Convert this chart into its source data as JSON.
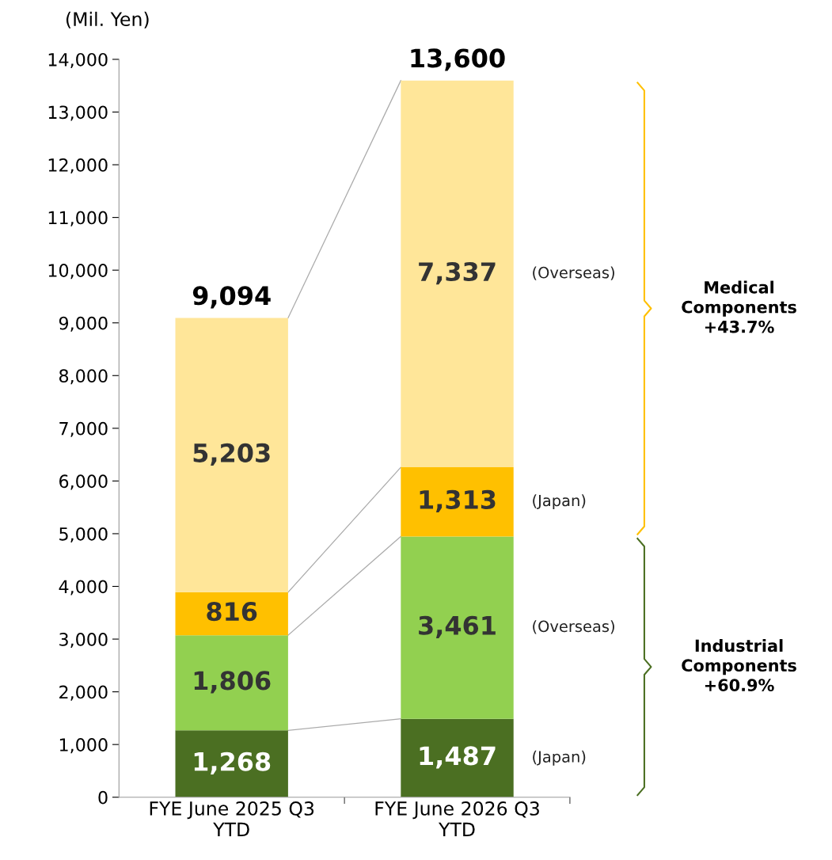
{
  "chart_data": {
    "type": "bar",
    "stacked": true,
    "ylabel": "(Mil. Yen)",
    "categories": [
      "FYE June 2025 Q3\nYTD",
      "FYE June 2026 Q3\nYTD"
    ],
    "series": [
      {
        "name": "(Japan)",
        "color": "#4b6f22",
        "values": [
          1268,
          1487
        ],
        "value_labels": [
          "1,268",
          "1,487"
        ]
      },
      {
        "name": "(Overseas)",
        "color": "#92d050",
        "values": [
          1806,
          3461
        ],
        "value_labels": [
          "1,806",
          "3,461"
        ]
      },
      {
        "name": "(Japan)",
        "color": "#ffc000",
        "values": [
          816,
          1313
        ],
        "value_labels": [
          "816",
          "1,313"
        ]
      },
      {
        "name": "(Overseas)",
        "color": "#ffe699",
        "values": [
          5203,
          7337
        ],
        "value_labels": [
          "5,203",
          "7,337"
        ]
      }
    ],
    "totals": [
      "9,094",
      "13,600"
    ],
    "ylim": [
      0,
      14000
    ],
    "yticks": [
      {
        "value": 0,
        "label": "0"
      },
      {
        "value": 1000,
        "label": "1,000"
      },
      {
        "value": 2000,
        "label": "2,000"
      },
      {
        "value": 3000,
        "label": "3,000"
      },
      {
        "value": 4000,
        "label": "4,000"
      },
      {
        "value": 5000,
        "label": "5,000"
      },
      {
        "value": 6000,
        "label": "6,000"
      },
      {
        "value": 7000,
        "label": "7,000"
      },
      {
        "value": 8000,
        "label": "8,000"
      },
      {
        "value": 9000,
        "label": "9,000"
      },
      {
        "value": 10000,
        "label": "10,000"
      },
      {
        "value": 11000,
        "label": "11,000"
      },
      {
        "value": 12000,
        "label": "12,000"
      },
      {
        "value": 13000,
        "label": "13,000"
      },
      {
        "value": 14000,
        "label": "14,000"
      }
    ],
    "grid": false,
    "annotations": [
      "Medical\nComponents\n+43.7%",
      "Industrial\nComponents\n+60.9%"
    ]
  }
}
